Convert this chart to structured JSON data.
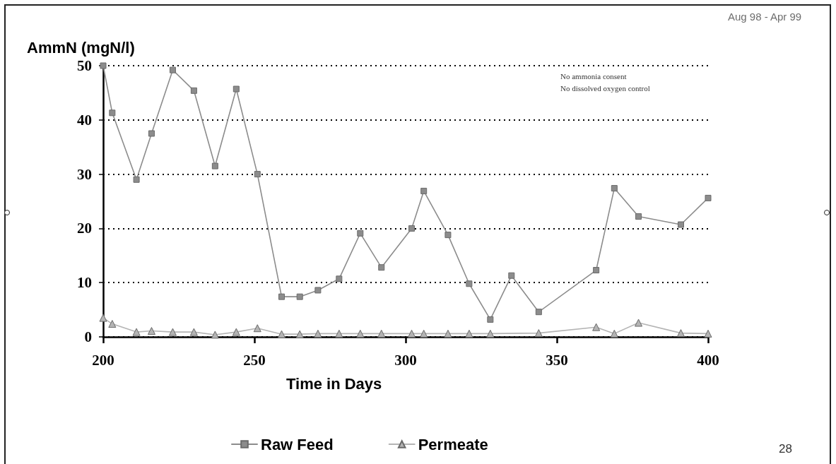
{
  "chart_data": {
    "type": "line",
    "subtitle": "Aug 98 - Apr 99",
    "xlabel": "Time in Days",
    "ylabel": "AmmN (mgN/l)",
    "annotations": [
      "No ammonia consent",
      "No dissolved oxygen control",
      "28"
    ],
    "xlim": [
      200,
      400
    ],
    "xticks": [
      200,
      250,
      300,
      350,
      400
    ],
    "ylim": [
      0,
      50
    ],
    "yticks": [
      0,
      10,
      20,
      30,
      40,
      50
    ],
    "grid": "y",
    "legend": "bottom",
    "line_style": "solid",
    "series": [
      {
        "name": "Raw Feed",
        "color": "#8c8c8c",
        "marker": "square",
        "x": [
          200,
          203,
          211,
          216,
          223,
          230,
          237,
          244,
          251,
          259,
          265,
          271,
          278,
          285,
          292,
          302,
          306,
          314,
          321,
          328,
          335,
          344,
          363,
          369,
          377,
          391,
          400
        ],
        "values": [
          50,
          41.3,
          29,
          37.5,
          49.2,
          45.4,
          31.5,
          45.7,
          30,
          7.4,
          7.4,
          8.6,
          10.7,
          19.1,
          12.8,
          20,
          26.9,
          18.8,
          9.8,
          3.2,
          11.3,
          4.6,
          12.3,
          27.4,
          22.2,
          20.7,
          25.6
        ]
      },
      {
        "name": "Permeate",
        "color": "#b4b4b4",
        "marker": "triangle",
        "x": [
          200,
          203,
          211,
          216,
          223,
          230,
          237,
          244,
          251,
          259,
          265,
          271,
          278,
          285,
          292,
          302,
          306,
          314,
          321,
          328,
          344,
          363,
          369,
          377,
          391,
          400
        ],
        "values": [
          3.5,
          2.4,
          0.9,
          1.1,
          0.9,
          0.9,
          0.4,
          0.9,
          1.6,
          0.5,
          0.5,
          0.6,
          0.6,
          0.6,
          0.6,
          0.6,
          0.6,
          0.6,
          0.6,
          0.6,
          0.7,
          1.8,
          0.6,
          2.6,
          0.7,
          0.6
        ]
      }
    ]
  }
}
